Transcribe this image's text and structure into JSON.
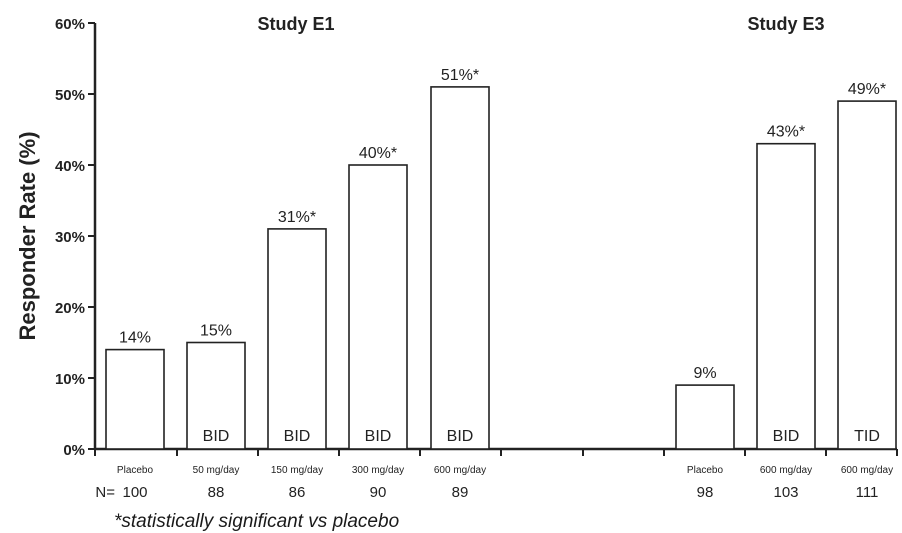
{
  "chart_data": {
    "type": "bar",
    "ylabel": "Responder Rate (%)",
    "ylim": [
      0,
      60
    ],
    "yticks": [
      "0%",
      "10%",
      "20%",
      "30%",
      "40%",
      "50%",
      "60%"
    ],
    "n_prefix": "N=",
    "groups": [
      {
        "title": "Study E1",
        "bars": [
          {
            "category": "Placebo",
            "value": 14,
            "label": "14%",
            "regimen": "",
            "n": "100"
          },
          {
            "category": "50 mg/day",
            "value": 15,
            "label": "15%",
            "regimen": "BID",
            "n": "88"
          },
          {
            "category": "150 mg/day",
            "value": 31,
            "label": "31%*",
            "regimen": "BID",
            "n": "86"
          },
          {
            "category": "300 mg/day",
            "value": 40,
            "label": "40%*",
            "regimen": "BID",
            "n": "90"
          },
          {
            "category": "600 mg/day",
            "value": 51,
            "label": "51%*",
            "regimen": "BID",
            "n": "89"
          }
        ]
      },
      {
        "title": "Study E3",
        "bars": [
          {
            "category": "Placebo",
            "value": 9,
            "label": "9%",
            "regimen": "",
            "n": "98"
          },
          {
            "category": "600 mg/day",
            "value": 43,
            "label": "43%*",
            "regimen": "BID",
            "n": "103"
          },
          {
            "category": "600 mg/day",
            "value": 49,
            "label": "49%*",
            "regimen": "TID",
            "n": "111"
          }
        ]
      }
    ],
    "footnote": "*statistically significant vs placebo"
  }
}
